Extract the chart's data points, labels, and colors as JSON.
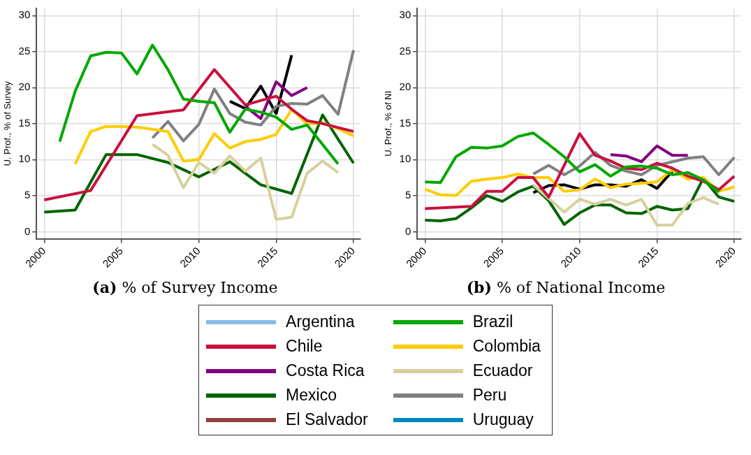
{
  "chart_data": [
    {
      "type": "line",
      "title": "(a) % of Survey Income",
      "ylabel": "U. Prof., % of Survey",
      "xlim": [
        1999.5,
        2020.45
      ],
      "ylim": [
        -1,
        31
      ],
      "xticks": [
        2000,
        2005,
        2010,
        2015,
        2020
      ],
      "yticks": [
        0,
        5,
        10,
        15,
        20,
        25,
        30
      ],
      "grid": true,
      "legend": "bottom",
      "line_style": "solid",
      "marker": "none",
      "series": [
        {
          "name": "Argentina",
          "color": "#85bde6"
        },
        {
          "name": "Brazil",
          "color": "#00a800",
          "x": [
            2001,
            2002,
            2003,
            2004,
            2005,
            2006,
            2007,
            2008,
            2009,
            2010,
            2011,
            2012,
            2013,
            2014,
            2015,
            2016,
            2017,
            2018,
            2019
          ],
          "values": [
            12.5,
            19.5,
            24.4,
            24.9,
            24.8,
            21.9,
            25.9,
            22.5,
            18.4,
            18.1,
            17.9,
            13.8,
            17.0,
            16.6,
            15.9,
            14.2,
            14.8,
            12.1,
            9.4
          ]
        },
        {
          "name": "Chile",
          "color": "#c8103e",
          "x": [
            2000,
            2003,
            2006,
            2009,
            2011,
            2013,
            2014,
            2015,
            2016,
            2017,
            2018,
            2020
          ],
          "values": [
            4.4,
            5.7,
            16.1,
            16.9,
            22.5,
            17.6,
            18.2,
            18.8,
            17.0,
            15.4,
            15.0,
            13.9
          ]
        },
        {
          "name": "Colombia",
          "color": "#ffcc00",
          "x": [
            2002,
            2003,
            2004,
            2005,
            2006,
            2007,
            2008,
            2009,
            2010,
            2011,
            2012,
            2013,
            2014,
            2015,
            2016,
            2017,
            2018,
            2019,
            2020
          ],
          "values": [
            9.4,
            13.9,
            14.6,
            14.6,
            14.5,
            14.2,
            13.9,
            9.8,
            10.0,
            13.6,
            11.6,
            12.5,
            12.8,
            13.5,
            17.0,
            14.9,
            15.1,
            14.3,
            13.3
          ]
        },
        {
          "name": "Costa Rica",
          "color": "#800080",
          "x": [
            2013,
            2014,
            2015,
            2016,
            2017
          ],
          "values": [
            17.4,
            15.7,
            20.8,
            18.9,
            20.0
          ]
        },
        {
          "name": "Ecuador",
          "color": "#d6d09c",
          "x": [
            2007,
            2008,
            2009,
            2010,
            2011,
            2012,
            2013,
            2014,
            2015,
            2016,
            2017,
            2018,
            2019
          ],
          "values": [
            12.1,
            10.6,
            6.1,
            9.6,
            8.1,
            10.5,
            8.4,
            10.2,
            1.7,
            2.0,
            8.1,
            9.8,
            8.2
          ]
        },
        {
          "name": "Mexico",
          "color": "#006400",
          "x": [
            2000,
            2002,
            2004,
            2006,
            2008,
            2010,
            2012,
            2014,
            2016,
            2018,
            2020
          ],
          "values": [
            2.7,
            3.0,
            10.7,
            10.7,
            9.6,
            7.6,
            9.7,
            6.5,
            5.3,
            16.2,
            9.5
          ]
        },
        {
          "name": "Peru",
          "color": "#808080",
          "x": [
            2007,
            2008,
            2009,
            2010,
            2011,
            2012,
            2013,
            2014,
            2015,
            2016,
            2017,
            2018,
            2019,
            2020
          ],
          "values": [
            13.0,
            15.3,
            12.6,
            14.9,
            19.8,
            16.4,
            15.2,
            14.8,
            17.4,
            17.8,
            17.7,
            18.9,
            16.3,
            25.2
          ]
        },
        {
          "name": "El Salvador",
          "color": "#914040"
        },
        {
          "name": "Uruguay",
          "color": "#0088bb"
        },
        {
          "color": "#000000",
          "x": [
            2012,
            2013,
            2014,
            2015,
            2016
          ],
          "values": [
            18.1,
            17.1,
            20.2,
            16.4,
            24.5
          ]
        }
      ]
    },
    {
      "type": "line",
      "title": "(b) % of National Income",
      "ylabel": "U. Prof., % of NI",
      "xlim": [
        1999.5,
        2020.45
      ],
      "ylim": [
        -1,
        31
      ],
      "xticks": [
        2000,
        2005,
        2010,
        2015,
        2020
      ],
      "yticks": [
        0,
        5,
        10,
        15,
        20,
        25,
        30
      ],
      "grid": true,
      "line_style": "solid",
      "marker": "none",
      "series": [
        {
          "color": "#00a800",
          "x": [
            2000,
            2001,
            2002,
            2003,
            2004,
            2005,
            2006,
            2007,
            2008,
            2009,
            2010,
            2011,
            2012,
            2013,
            2014,
            2015,
            2016,
            2017,
            2018,
            2019
          ],
          "values": [
            6.9,
            6.8,
            10.4,
            11.7,
            11.6,
            11.9,
            13.2,
            13.7,
            12.1,
            10.4,
            8.3,
            9.3,
            7.7,
            9.0,
            9.1,
            8.8,
            7.9,
            8.2,
            7.2,
            5.5
          ]
        },
        {
          "color": "#c8103e",
          "x": [
            2000,
            2003,
            2004,
            2005,
            2006,
            2007,
            2008,
            2010,
            2011,
            2012,
            2013,
            2014,
            2015,
            2016,
            2017,
            2018,
            2019,
            2020
          ],
          "values": [
            3.2,
            3.5,
            5.6,
            5.6,
            7.5,
            7.5,
            4.8,
            13.6,
            10.6,
            9.8,
            8.8,
            8.6,
            9.5,
            8.8,
            7.7,
            7.0,
            5.8,
            7.7
          ]
        },
        {
          "color": "#ffcc00",
          "x": [
            2000,
            2001,
            2002,
            2003,
            2004,
            2005,
            2006,
            2007,
            2008,
            2009,
            2010,
            2011,
            2012,
            2013,
            2014,
            2015,
            2016,
            2017,
            2018,
            2019,
            2020
          ],
          "values": [
            5.9,
            5.1,
            5.0,
            7.0,
            7.3,
            7.5,
            8.0,
            7.5,
            7.5,
            5.6,
            5.8,
            7.3,
            6.1,
            6.6,
            6.7,
            6.9,
            8.6,
            7.3,
            7.5,
            5.6,
            6.2
          ]
        },
        {
          "color": "#800080",
          "x": [
            2012,
            2013,
            2014,
            2015,
            2016,
            2017
          ],
          "values": [
            10.7,
            10.5,
            9.7,
            11.9,
            10.6,
            10.6
          ]
        },
        {
          "color": "#d6d09c",
          "x": [
            2007,
            2008,
            2009,
            2010,
            2011,
            2012,
            2013,
            2014,
            2015,
            2016,
            2017,
            2018,
            2019
          ],
          "values": [
            6.5,
            4.6,
            2.7,
            4.5,
            3.8,
            4.5,
            3.7,
            4.5,
            0.9,
            0.9,
            3.9,
            4.7,
            3.8
          ]
        },
        {
          "color": "#006400",
          "x": [
            2000,
            2001,
            2002,
            2003,
            2004,
            2005,
            2006,
            2007,
            2008,
            2009,
            2010,
            2011,
            2012,
            2013,
            2014,
            2015,
            2016,
            2017,
            2018,
            2019,
            2020
          ],
          "values": [
            1.6,
            1.5,
            1.8,
            3.3,
            5.0,
            4.2,
            5.5,
            6.3,
            4.3,
            1.0,
            2.6,
            3.7,
            3.7,
            2.6,
            2.5,
            3.5,
            3.0,
            3.2,
            7.4,
            4.8,
            4.2
          ]
        },
        {
          "color": "#808080",
          "x": [
            2007,
            2008,
            2009,
            2010,
            2011,
            2012,
            2013,
            2014,
            2015,
            2016,
            2017,
            2018,
            2019,
            2020
          ],
          "values": [
            8.0,
            9.2,
            7.9,
            9.1,
            11.0,
            9.2,
            8.4,
            7.9,
            9.2,
            9.7,
            10.2,
            10.4,
            7.9,
            10.3
          ]
        },
        {
          "color": "#000000",
          "x": [
            2007,
            2008,
            2009,
            2010,
            2011,
            2012,
            2013,
            2014,
            2015,
            2016
          ],
          "values": [
            5.4,
            6.4,
            6.5,
            5.9,
            6.5,
            6.5,
            6.3,
            7.2,
            6.0,
            8.4
          ]
        }
      ]
    }
  ]
}
